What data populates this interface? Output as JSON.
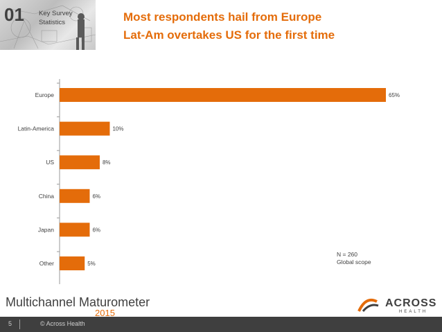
{
  "header": {
    "section_number": "01",
    "section_label_line1": "Key Survey",
    "section_label_line2": "Statistics",
    "title_line1": "Most respondents hail from Europe",
    "title_line2": "Lat-Am overtakes US for the first time"
  },
  "chart_data": {
    "type": "bar",
    "orientation": "horizontal",
    "categories": [
      "Europe",
      "Latin-America",
      "US",
      "China",
      "Japan",
      "Other"
    ],
    "values": [
      65,
      10,
      8,
      6,
      6,
      5
    ],
    "value_labels": [
      "65%",
      "10%",
      "8%",
      "6%",
      "6%",
      "5%"
    ],
    "xlim": [
      0,
      65
    ],
    "grid": false,
    "bar_color": "#e46c0a"
  },
  "note": {
    "line1": "N = 260",
    "line2": "Global scope"
  },
  "brand": {
    "name": "Multichannel Maturometer",
    "year": "2015"
  },
  "logo": {
    "name": "ACROSS",
    "sub": "HEALTH"
  },
  "footer": {
    "page_number": "5",
    "copyright": "© Across Health"
  },
  "colors": {
    "accent": "#e46c0a",
    "dark": "#404040",
    "footer_bg": "#3f3f3f"
  }
}
